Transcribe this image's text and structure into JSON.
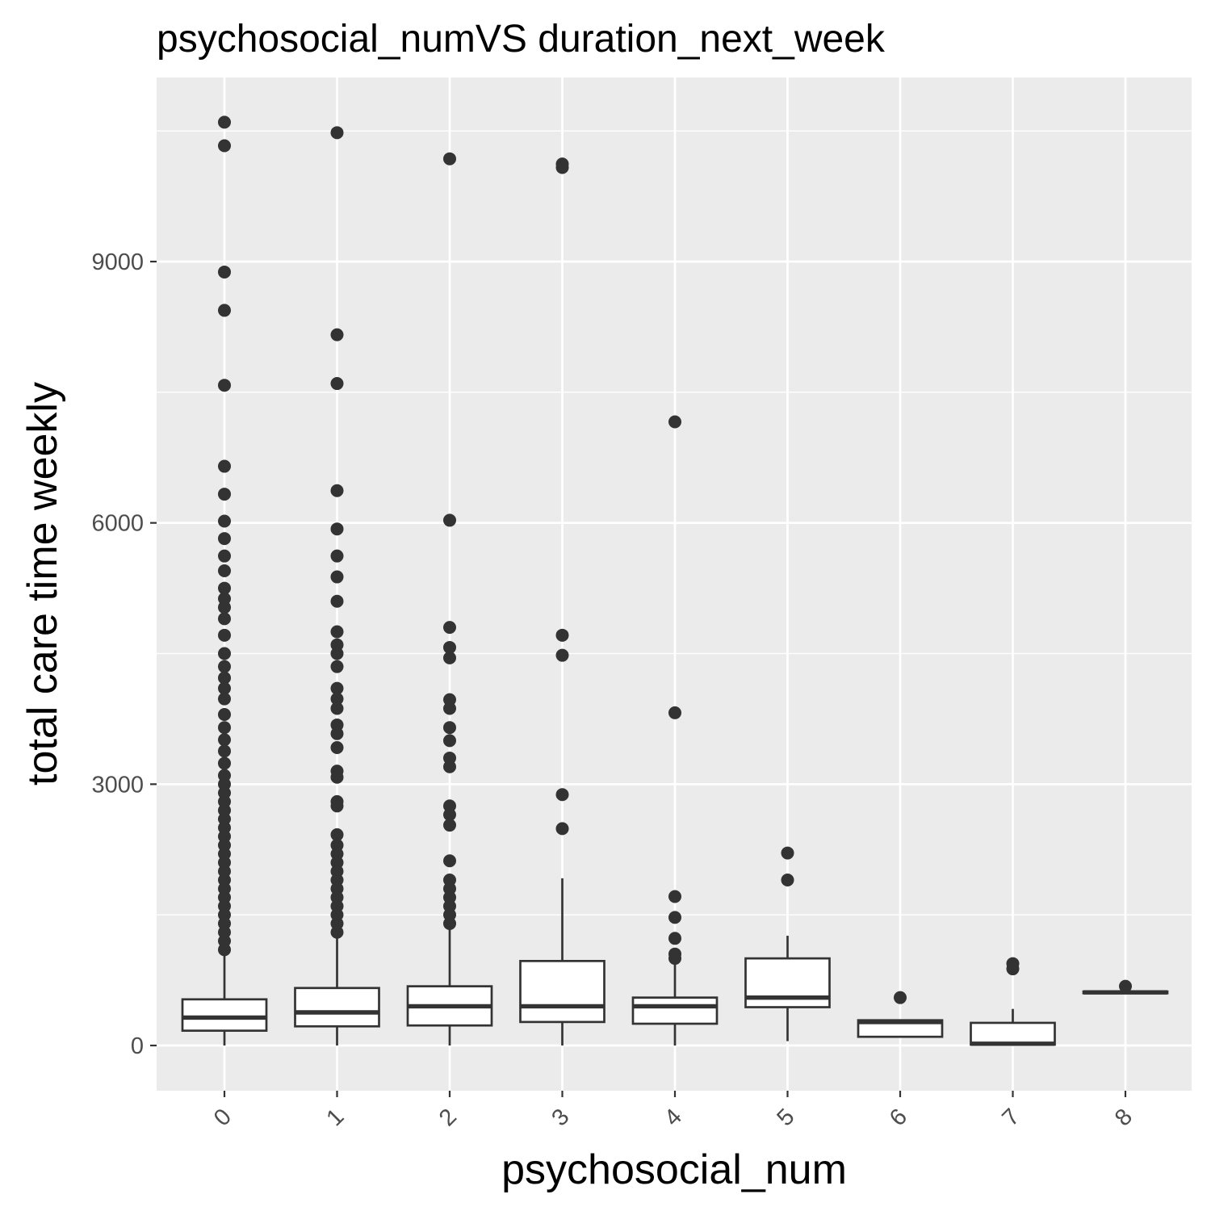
{
  "chart_data": {
    "type": "boxplot",
    "title": "psychosocial_numVS duration_next_week",
    "xlabel": "psychosocial_num",
    "ylabel": "total care time weekly",
    "ylim": [
      -500,
      11300
    ],
    "yticks": [
      0,
      3000,
      6000,
      9000
    ],
    "y_gridlines_minor": [
      1500,
      4500,
      7500,
      10500
    ],
    "grid": true,
    "categories": [
      "0",
      "1",
      "2",
      "3",
      "4",
      "5",
      "6",
      "7",
      "8"
    ],
    "boxes": [
      {
        "category": "0",
        "whisker_low": 0,
        "q1": 170,
        "median": 320,
        "q3": 530,
        "whisker_high": 1030,
        "outliers": [
          10600,
          10330,
          8880,
          8440,
          7580,
          6650,
          6330,
          6020,
          5820,
          5620,
          5450,
          5250,
          5130,
          5030,
          4900,
          4710,
          4500,
          4350,
          4220,
          4100,
          3980,
          3800,
          3650,
          3510,
          3380,
          3240,
          3100,
          3000,
          2900,
          2800,
          2700,
          2600,
          2500,
          2400,
          2300,
          2200,
          2100,
          2000,
          1900,
          1800,
          1700,
          1600,
          1500,
          1400,
          1300,
          1200,
          1100
        ]
      },
      {
        "category": "1",
        "whisker_low": 0,
        "q1": 220,
        "median": 380,
        "q3": 660,
        "whisker_high": 1250,
        "outliers": [
          10480,
          8160,
          7600,
          6370,
          5930,
          5620,
          5380,
          5100,
          4750,
          4600,
          4500,
          4350,
          4100,
          3980,
          3870,
          3680,
          3580,
          3420,
          3150,
          3080,
          2800,
          2750,
          2420,
          2300,
          2200,
          2100,
          2000,
          1900,
          1800,
          1700,
          1600,
          1500,
          1400,
          1300
        ]
      },
      {
        "category": "2",
        "whisker_low": 0,
        "q1": 230,
        "median": 450,
        "q3": 680,
        "whisker_high": 1350,
        "outliers": [
          10180,
          6030,
          4800,
          4570,
          4450,
          3970,
          3870,
          3650,
          3500,
          3300,
          3200,
          2750,
          2650,
          2530,
          2120,
          1900,
          1800,
          1700,
          1600,
          1500,
          1400
        ]
      },
      {
        "category": "3",
        "whisker_low": 0,
        "q1": 270,
        "median": 450,
        "q3": 970,
        "whisker_high": 1920,
        "outliers": [
          10120,
          10080,
          4710,
          4480,
          2880,
          2490
        ]
      },
      {
        "category": "4",
        "whisker_low": 0,
        "q1": 250,
        "median": 450,
        "q3": 550,
        "whisker_high": 960,
        "outliers": [
          7160,
          3820,
          1710,
          1470,
          1230,
          1050,
          1000
        ]
      },
      {
        "category": "5",
        "whisker_low": 50,
        "q1": 440,
        "median": 550,
        "q3": 1000,
        "whisker_high": 1260,
        "outliers": [
          2210,
          1900
        ]
      },
      {
        "category": "6",
        "whisker_low": 100,
        "q1": 100,
        "median": 270,
        "q3": 290,
        "whisker_high": 290,
        "outliers": [
          550
        ]
      },
      {
        "category": "7",
        "whisker_low": 0,
        "q1": 10,
        "median": 20,
        "q3": 260,
        "whisker_high": 420,
        "outliers": [
          940,
          880
        ]
      },
      {
        "category": "8",
        "whisker_low": 600,
        "q1": 600,
        "median": 610,
        "q3": 620,
        "whisker_high": 620,
        "outliers": [
          680
        ]
      }
    ],
    "colors": {
      "page_background": "#ffffff",
      "panel_background": "#ebebeb",
      "gridline": "#ffffff",
      "box_fill": "#ffffff",
      "box_stroke": "#333333",
      "outlier": "#333333",
      "tick_text": "#4d4d4d",
      "tick_mark": "#333333",
      "title_text": "#000000"
    }
  }
}
